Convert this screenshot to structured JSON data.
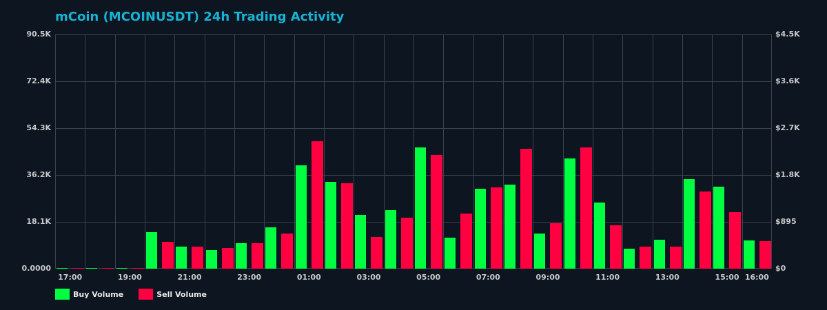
{
  "title": "mCoin (MCOINUSDT) 24h Trading Activity",
  "colors": {
    "background": "#0d1520",
    "title": "#17b3d4",
    "buy": "#00ff41",
    "sell": "#ff0040",
    "grid": "#3a4350",
    "axis_text": "#c8c8c8"
  },
  "legend": [
    {
      "label": "Buy Volume",
      "color": "#00ff41"
    },
    {
      "label": "Sell Volume",
      "color": "#ff0040"
    }
  ],
  "chart_data": {
    "type": "bar",
    "title": "mCoin (MCOINUSDT) 24h Trading Activity",
    "xlabel": "",
    "ylabel": "",
    "categories": [
      "17:00",
      "18:00",
      "19:00",
      "20:00",
      "21:00",
      "22:00",
      "23:00",
      "00:00",
      "01:00",
      "02:00",
      "03:00",
      "04:00",
      "05:00",
      "06:00",
      "07:00",
      "08:00",
      "09:00",
      "10:00",
      "11:00",
      "12:00",
      "13:00",
      "14:00",
      "15:00",
      "16:00"
    ],
    "x_tick_labels": [
      "17:00",
      "19:00",
      "21:00",
      "23:00",
      "01:00",
      "03:00",
      "05:00",
      "07:00",
      "09:00",
      "11:00",
      "13:00",
      "15:00",
      "16:00"
    ],
    "series": [
      {
        "name": "Buy Volume",
        "color": "#00ff41",
        "values": [
          200,
          200,
          200,
          14100,
          8500,
          7200,
          9800,
          16000,
          39900,
          33500,
          20800,
          22600,
          46900,
          12000,
          30900,
          32500,
          13600,
          42600,
          25600,
          7700,
          11200,
          34600,
          31700,
          10900
        ]
      },
      {
        "name": "Sell Volume",
        "color": "#ff0040",
        "values": [
          150,
          150,
          150,
          10400,
          8500,
          8000,
          9800,
          13600,
          49200,
          33000,
          12200,
          19700,
          43900,
          21300,
          31400,
          46300,
          17600,
          46900,
          16800,
          8500,
          8500,
          29800,
          21800,
          10600
        ]
      }
    ],
    "ylim": [
      0,
      90500
    ],
    "y_left_ticks": [
      "0.0000",
      "18.1K",
      "36.2K",
      "54.3K",
      "72.4K",
      "90.5K"
    ],
    "y_right_ticks": [
      "$0",
      "$895",
      "$1.8K",
      "$2.7K",
      "$3.6K",
      "$4.5K"
    ],
    "grid": true,
    "legend_position": "bottom-left"
  }
}
